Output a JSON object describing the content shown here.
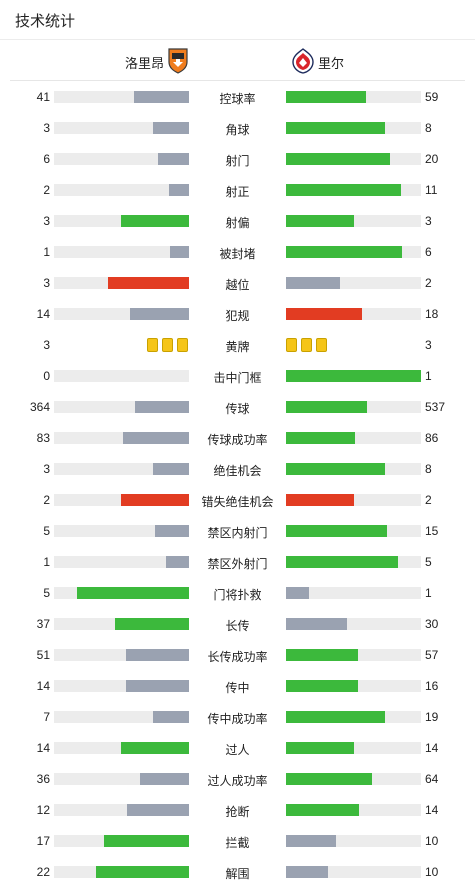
{
  "header": {
    "title": "技术统计"
  },
  "teams": {
    "home": {
      "name": "洛里昂",
      "logo_icon": "lorient-crest-icon"
    },
    "away": {
      "name": "里尔",
      "logo_icon": "lille-crest-icon"
    }
  },
  "colors": {
    "green": "#3cb93c",
    "grey": "#9aa2b1",
    "red": "#e23c22",
    "track": "#ececec",
    "yellow": "#f5c518"
  },
  "stats": [
    {
      "label": "控球率",
      "home": "41",
      "away": "59",
      "home_frac": 0.41,
      "away_frac": 0.59,
      "home_color": "grey",
      "away_color": "green"
    },
    {
      "label": "角球",
      "home": "3",
      "away": "8",
      "home_frac": 0.27,
      "away_frac": 0.73,
      "home_color": "grey",
      "away_color": "green"
    },
    {
      "label": "射门",
      "home": "6",
      "away": "20",
      "home_frac": 0.23,
      "away_frac": 0.77,
      "home_color": "grey",
      "away_color": "green"
    },
    {
      "label": "射正",
      "home": "2",
      "away": "11",
      "home_frac": 0.15,
      "away_frac": 0.85,
      "home_color": "grey",
      "away_color": "green"
    },
    {
      "label": "射偏",
      "home": "3",
      "away": "3",
      "home_frac": 0.5,
      "away_frac": 0.5,
      "home_color": "green",
      "away_color": "green"
    },
    {
      "label": "被封堵",
      "home": "1",
      "away": "6",
      "home_frac": 0.14,
      "away_frac": 0.86,
      "home_color": "grey",
      "away_color": "green"
    },
    {
      "label": "越位",
      "home": "3",
      "away": "2",
      "home_frac": 0.6,
      "away_frac": 0.4,
      "home_color": "red",
      "away_color": "grey"
    },
    {
      "label": "犯规",
      "home": "14",
      "away": "18",
      "home_frac": 0.44,
      "away_frac": 0.56,
      "home_color": "grey",
      "away_color": "red"
    },
    {
      "label": "黄牌",
      "home": "3",
      "away": "3",
      "type": "cards",
      "home_cards": 3,
      "away_cards": 3
    },
    {
      "label": "击中门框",
      "home": "0",
      "away": "1",
      "home_frac": 0,
      "away_frac": 1,
      "home_color": "grey",
      "away_color": "green"
    },
    {
      "label": "传球",
      "home": "364",
      "away": "537",
      "home_frac": 0.4,
      "away_frac": 0.6,
      "home_color": "grey",
      "away_color": "green"
    },
    {
      "label": "传球成功率",
      "home": "83",
      "away": "86",
      "home_frac": 0.49,
      "away_frac": 0.51,
      "home_color": "grey",
      "away_color": "green"
    },
    {
      "label": "绝佳机会",
      "home": "3",
      "away": "8",
      "home_frac": 0.27,
      "away_frac": 0.73,
      "home_color": "grey",
      "away_color": "green"
    },
    {
      "label": "错失绝佳机会",
      "home": "2",
      "away": "2",
      "home_frac": 0.5,
      "away_frac": 0.5,
      "home_color": "red",
      "away_color": "red"
    },
    {
      "label": "禁区内射门",
      "home": "5",
      "away": "15",
      "home_frac": 0.25,
      "away_frac": 0.75,
      "home_color": "grey",
      "away_color": "green"
    },
    {
      "label": "禁区外射门",
      "home": "1",
      "away": "5",
      "home_frac": 0.17,
      "away_frac": 0.83,
      "home_color": "grey",
      "away_color": "green"
    },
    {
      "label": "门将扑救",
      "home": "5",
      "away": "1",
      "home_frac": 0.83,
      "away_frac": 0.17,
      "home_color": "green",
      "away_color": "grey"
    },
    {
      "label": "长传",
      "home": "37",
      "away": "30",
      "home_frac": 0.55,
      "away_frac": 0.45,
      "home_color": "green",
      "away_color": "grey"
    },
    {
      "label": "长传成功率",
      "home": "51",
      "away": "57",
      "home_frac": 0.47,
      "away_frac": 0.53,
      "home_color": "grey",
      "away_color": "green"
    },
    {
      "label": "传中",
      "home": "14",
      "away": "16",
      "home_frac": 0.47,
      "away_frac": 0.53,
      "home_color": "grey",
      "away_color": "green"
    },
    {
      "label": "传中成功率",
      "home": "7",
      "away": "19",
      "home_frac": 0.27,
      "away_frac": 0.73,
      "home_color": "grey",
      "away_color": "green"
    },
    {
      "label": "过人",
      "home": "14",
      "away": "14",
      "home_frac": 0.5,
      "away_frac": 0.5,
      "home_color": "green",
      "away_color": "green"
    },
    {
      "label": "过人成功率",
      "home": "36",
      "away": "64",
      "home_frac": 0.36,
      "away_frac": 0.64,
      "home_color": "grey",
      "away_color": "green"
    },
    {
      "label": "抢断",
      "home": "12",
      "away": "14",
      "home_frac": 0.46,
      "away_frac": 0.54,
      "home_color": "grey",
      "away_color": "green"
    },
    {
      "label": "拦截",
      "home": "17",
      "away": "10",
      "home_frac": 0.63,
      "away_frac": 0.37,
      "home_color": "green",
      "away_color": "grey"
    },
    {
      "label": "解围",
      "home": "22",
      "away": "10",
      "home_frac": 0.69,
      "away_frac": 0.31,
      "home_color": "green",
      "away_color": "grey"
    }
  ]
}
